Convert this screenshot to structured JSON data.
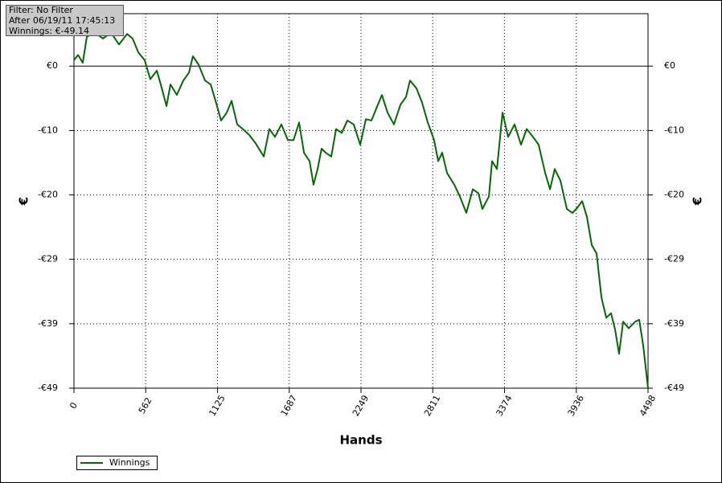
{
  "chart_data": {
    "type": "line",
    "annotations": [
      "Filter: No Filter",
      "After 06/19/11 17:45:13",
      "Winnings: €-49.14"
    ],
    "x_label": "Hands",
    "y_label": "€",
    "y2_label": "€",
    "x": [
      0,
      32,
      69,
      101,
      164,
      227,
      290,
      353,
      416,
      460,
      504,
      554,
      598,
      649,
      680,
      725,
      756,
      806,
      857,
      901,
      932,
      977,
      1027,
      1071,
      1109,
      1153,
      1197,
      1235,
      1279,
      1323,
      1373,
      1424,
      1487,
      1531,
      1575,
      1625,
      1676,
      1720,
      1764,
      1802,
      1846,
      1877,
      1909,
      1940,
      1972,
      2016,
      2054,
      2098,
      2142,
      2192,
      2243,
      2287,
      2331,
      2381,
      2413,
      2457,
      2507,
      2558,
      2602,
      2633,
      2684,
      2728,
      2772,
      2822,
      2854,
      2885,
      2923,
      2980,
      3024,
      3074,
      3125,
      3169,
      3200,
      3251,
      3276,
      3314,
      3358,
      3402,
      3452,
      3503,
      3547,
      3597,
      3641,
      3692,
      3730,
      3767,
      3812,
      3862,
      3906,
      3944,
      3982,
      4019,
      4057,
      4095,
      4133,
      4171,
      4208,
      4240,
      4271,
      4303,
      4347,
      4397,
      4429,
      4460,
      4498
    ],
    "series": [
      {
        "name": "Winnings",
        "color": "#0a640a",
        "values": [
          0.9,
          1.7,
          0.5,
          4.5,
          5.1,
          4.2,
          5.1,
          3.3,
          4.9,
          4.2,
          2.1,
          0.9,
          -2.0,
          -0.7,
          -2.8,
          -6.1,
          -2.8,
          -4.4,
          -2.2,
          -1.0,
          1.5,
          0.2,
          -2.2,
          -2.8,
          -5.3,
          -8.3,
          -7.1,
          -5.3,
          -8.9,
          -9.6,
          -10.5,
          -11.8,
          -13.8,
          -9.6,
          -10.8,
          -8.9,
          -11.3,
          -11.3,
          -8.6,
          -13.2,
          -14.5,
          -18.1,
          -15.7,
          -12.6,
          -13.2,
          -13.8,
          -9.6,
          -10.2,
          -8.3,
          -8.9,
          -12.0,
          -8.1,
          -8.3,
          -5.9,
          -4.4,
          -7.1,
          -8.9,
          -5.9,
          -4.7,
          -2.2,
          -3.4,
          -5.6,
          -8.6,
          -11.3,
          -14.5,
          -13.2,
          -16.3,
          -18.1,
          -19.9,
          -22.4,
          -18.8,
          -19.4,
          -21.8,
          -19.9,
          -14.5,
          -15.7,
          -7.1,
          -10.8,
          -8.9,
          -12.0,
          -9.6,
          -10.8,
          -12.0,
          -16.3,
          -18.8,
          -15.7,
          -17.5,
          -21.8,
          -22.4,
          -21.6,
          -20.6,
          -23.0,
          -27.3,
          -28.6,
          -35.3,
          -38.4,
          -37.7,
          -40.2,
          -43.9,
          -39.0,
          -40.0,
          -39.0,
          -38.7,
          -42.6,
          -49.14
        ]
      }
    ],
    "xlim": [
      0,
      4498
    ],
    "xticks": [
      0,
      562,
      1125,
      1687,
      2249,
      2811,
      3374,
      3936,
      4498
    ],
    "ylim": [
      -49.14,
      8
    ],
    "yticks": [
      {
        "value": 0,
        "label": "€0"
      },
      {
        "value": -9.83,
        "label": "-€10"
      },
      {
        "value": -19.66,
        "label": "-€20"
      },
      {
        "value": -29.48,
        "label": "-€29"
      },
      {
        "value": -39.31,
        "label": "-€39"
      },
      {
        "value": -49.14,
        "label": "-€49"
      }
    ],
    "grid": true
  }
}
